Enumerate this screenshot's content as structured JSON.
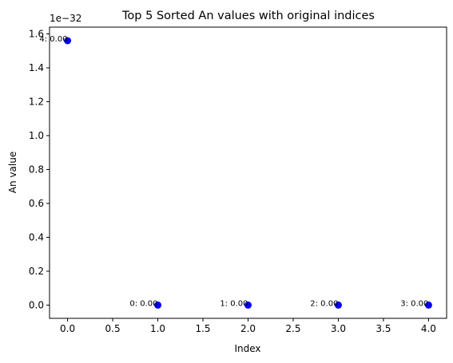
{
  "chart_data": {
    "type": "scatter",
    "title": "Top 5 Sorted An values with original indices",
    "xlabel": "Index",
    "ylabel": "An value",
    "y_offset_label": "1e−32",
    "xlim": [
      -0.2,
      4.2
    ],
    "ylim": [
      -0.078,
      1.64
    ],
    "x_ticks": [
      "0.0",
      "0.5",
      "1.0",
      "1.5",
      "2.0",
      "2.5",
      "3.0",
      "3.5",
      "4.0"
    ],
    "y_ticks": [
      "0.0",
      "0.2",
      "0.4",
      "0.6",
      "0.8",
      "1.0",
      "1.2",
      "1.4",
      "1.6"
    ],
    "grid": false,
    "marker_color": "#0000ff",
    "points": [
      {
        "x": 0,
        "y": 1.56,
        "label": "4: 0.00"
      },
      {
        "x": 1,
        "y": 0,
        "label": "0: 0.00"
      },
      {
        "x": 2,
        "y": 0,
        "label": "1: 0.00"
      },
      {
        "x": 3,
        "y": 0,
        "label": "2: 0.00"
      },
      {
        "x": 4,
        "y": 0,
        "label": "3: 0.00"
      }
    ]
  }
}
